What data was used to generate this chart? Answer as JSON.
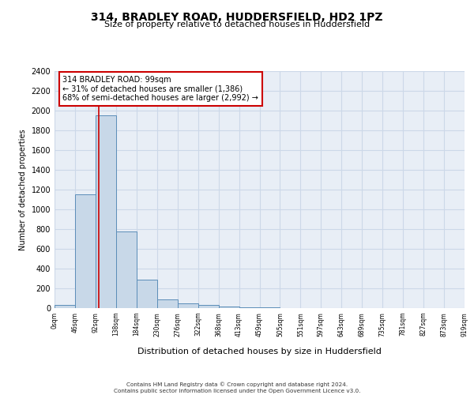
{
  "title": "314, BRADLEY ROAD, HUDDERSFIELD, HD2 1PZ",
  "subtitle": "Size of property relative to detached houses in Huddersfield",
  "xlabel": "Distribution of detached houses by size in Huddersfield",
  "ylabel": "Number of detached properties",
  "bar_values": [
    30,
    1150,
    1950,
    780,
    290,
    90,
    50,
    35,
    20,
    10,
    5,
    2,
    1,
    0,
    0,
    0,
    0,
    0,
    0,
    0
  ],
  "bin_edges": [
    "0sqm",
    "46sqm",
    "92sqm",
    "138sqm",
    "184sqm",
    "230sqm",
    "276sqm",
    "322sqm",
    "368sqm",
    "413sqm",
    "459sqm",
    "505sqm",
    "551sqm",
    "597sqm",
    "643sqm",
    "689sqm",
    "735sqm",
    "781sqm",
    "827sqm",
    "873sqm",
    "919sqm"
  ],
  "bar_color": "#c8d8e8",
  "bar_edge_color": "#5b8db8",
  "ylim": [
    0,
    2400
  ],
  "yticks": [
    0,
    200,
    400,
    600,
    800,
    1000,
    1200,
    1400,
    1600,
    1800,
    2000,
    2200,
    2400
  ],
  "red_line_x": 2.15,
  "annotation_line1": "314 BRADLEY ROAD: 99sqm",
  "annotation_line2": "← 31% of detached houses are smaller (1,386)",
  "annotation_line3": "68% of semi-detached houses are larger (2,992) →",
  "annotation_box_color": "#ffffff",
  "annotation_border_color": "#cc0000",
  "grid_color": "#ccd8e8",
  "background_color": "#e8eef6",
  "footer_line1": "Contains HM Land Registry data © Crown copyright and database right 2024.",
  "footer_line2": "Contains public sector information licensed under the Open Government Licence v3.0."
}
